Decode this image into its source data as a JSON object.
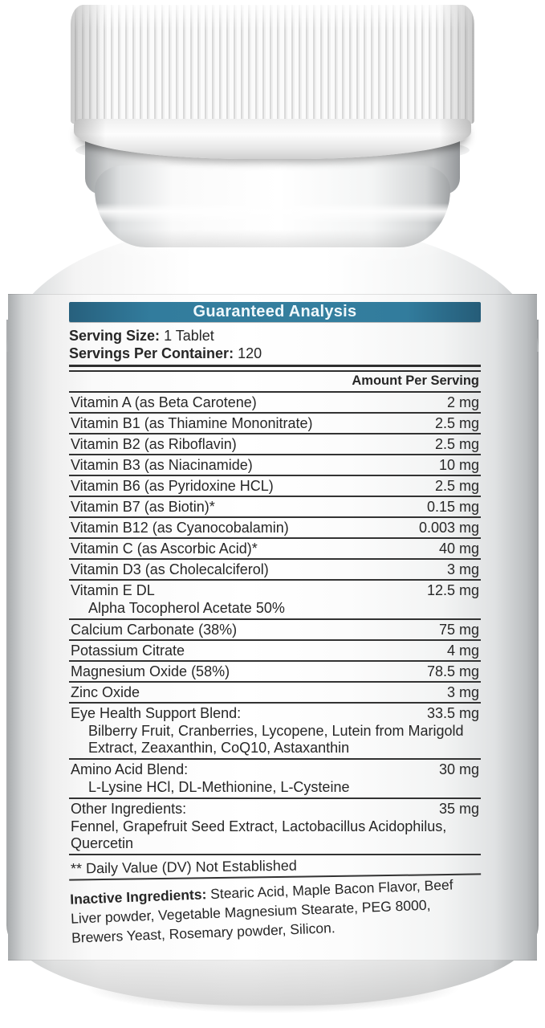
{
  "colors": {
    "header_bar": "#327c9d",
    "label_text": "#272727",
    "rule": "#333333"
  },
  "label": {
    "header": "Guaranteed Analysis",
    "serving_size_label": "Serving Size:",
    "serving_size_value": "1 Tablet",
    "servings_per_container_label": "Servings Per Container:",
    "servings_per_container_value": "120",
    "amount_per_serving": "Amount Per Serving",
    "rows": [
      {
        "name": "Vitamin A (as Beta Carotene)",
        "amount": "2 mg"
      },
      {
        "name": "Vitamin B1 (as Thiamine Mononitrate)",
        "amount": "2.5 mg"
      },
      {
        "name": "Vitamin B2 (as Riboflavin)",
        "amount": "2.5 mg"
      },
      {
        "name": "Vitamin B3 (as Niacinamide)",
        "amount": "10 mg"
      },
      {
        "name": "Vitamin B6 (as Pyridoxine HCL)",
        "amount": "2.5 mg"
      },
      {
        "name": "Vitamin B7 (as Biotin)*",
        "amount": "0.15 mg"
      },
      {
        "name": "Vitamin B12 (as Cyanocobalamin)",
        "amount": "0.003 mg"
      },
      {
        "name": "Vitamin C (as Ascorbic Acid)*",
        "amount": "40 mg"
      },
      {
        "name": "Vitamin D3 (as Cholecalciferol)",
        "amount": "3 mg"
      },
      {
        "name": "Vitamin E DL",
        "amount": "12.5 mg",
        "sub": "Alpha Tocopherol Acetate 50%"
      },
      {
        "name": "Calcium Carbonate (38%)",
        "amount": "75 mg"
      },
      {
        "name": "Potassium Citrate",
        "amount": "4 mg"
      },
      {
        "name": "Magnesium Oxide (58%)",
        "amount": "78.5 mg"
      },
      {
        "name": "Zinc Oxide",
        "amount": "3 mg"
      },
      {
        "name": "Eye Health Support Blend:",
        "amount": "33.5 mg",
        "sub": "Bilberry Fruit, Cranberries, Lycopene, Lutein from Marigold Extract, Zeaxanthin, CoQ10, Astaxanthin"
      },
      {
        "name": "Amino Acid Blend:",
        "amount": "30 mg",
        "sub": "L-Lysine HCl, DL-Methionine, L-Cysteine"
      },
      {
        "name": "Other Ingredients:",
        "amount": "35 mg",
        "sub": "Fennel, Grapefruit Seed Extract, Lactobacillus Acidophilus, Quercetin"
      }
    ],
    "footnote": "** Daily Value (DV) Not Established",
    "inactive_label": "Inactive Ingredients:",
    "inactive_text": "Stearic Acid, Maple Bacon Flavor, Beef Liver powder, Vegetable Magnesium Stearate, PEG 8000, Brewers Yeast, Rosemary powder, Silicon."
  }
}
